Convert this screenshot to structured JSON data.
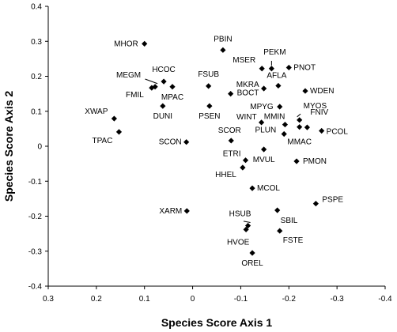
{
  "chart_data": {
    "type": "scatter",
    "title": "",
    "xlabel": "Species Score Axis 1",
    "ylabel": "Species Score Axis 2",
    "xlim": [
      0.3,
      -0.4
    ],
    "ylim": [
      -0.4,
      0.4
    ],
    "x_ticks": [
      "0.3",
      "0.2",
      "0.1",
      "0",
      "-0.1",
      "-0.2",
      "-0.3",
      "-0.4"
    ],
    "y_ticks": [
      "0.4",
      "0.3",
      "0.2",
      "0.1",
      "0",
      "-0.1",
      "-0.2",
      "-0.3",
      "-0.4"
    ],
    "grid": false,
    "marker": "diamond",
    "points": [
      {
        "label": "MHOR",
        "x": 0.1,
        "y": 0.293
      },
      {
        "label": "PBIN",
        "x": -0.063,
        "y": 0.275
      },
      {
        "label": "PEKM",
        "x": -0.164,
        "y": 0.222
      },
      {
        "label": "MSER",
        "x": -0.144,
        "y": 0.222
      },
      {
        "label": "PNOT",
        "x": -0.2,
        "y": 0.225
      },
      {
        "label": "MEGM",
        "x": 0.078,
        "y": 0.17
      },
      {
        "label": "HCOC",
        "x": 0.06,
        "y": 0.185
      },
      {
        "label": "FMIL",
        "x": 0.085,
        "y": 0.167
      },
      {
        "label": "MPAC",
        "x": 0.042,
        "y": 0.17
      },
      {
        "label": "FSUB",
        "x": -0.033,
        "y": 0.172
      },
      {
        "label": "MKRA",
        "x": -0.148,
        "y": 0.165
      },
      {
        "label": "AFLA",
        "x": -0.178,
        "y": 0.173
      },
      {
        "label": "BOCT",
        "x": -0.079,
        "y": 0.15
      },
      {
        "label": "WDEN",
        "x": -0.234,
        "y": 0.158
      },
      {
        "label": "DUNI",
        "x": 0.062,
        "y": 0.115
      },
      {
        "label": "PSEN",
        "x": -0.035,
        "y": 0.115
      },
      {
        "label": "MPYG",
        "x": -0.181,
        "y": 0.113
      },
      {
        "label": "XWAP",
        "x": 0.163,
        "y": 0.079
      },
      {
        "label": "WINT",
        "x": -0.143,
        "y": 0.068
      },
      {
        "label": "MMIN",
        "x": -0.192,
        "y": 0.062
      },
      {
        "label": "MYOS",
        "x": -0.222,
        "y": 0.075
      },
      {
        "label": "FNIV",
        "x": -0.238,
        "y": 0.054
      },
      {
        "label": "PCOL",
        "x": -0.268,
        "y": 0.044
      },
      {
        "label": "MMAC",
        "x": -0.222,
        "y": 0.055
      },
      {
        "label": "TPAC",
        "x": 0.153,
        "y": 0.041
      },
      {
        "label": "SCOR",
        "x": -0.08,
        "y": 0.016
      },
      {
        "label": "PLUN",
        "x": -0.19,
        "y": 0.035
      },
      {
        "label": "SCON",
        "x": 0.013,
        "y": 0.012
      },
      {
        "label": "MVUL",
        "x": -0.148,
        "y": -0.009
      },
      {
        "label": "ETRI",
        "x": -0.11,
        "y": -0.04
      },
      {
        "label": "PMON",
        "x": -0.216,
        "y": -0.043
      },
      {
        "label": "HHEL",
        "x": -0.104,
        "y": -0.061
      },
      {
        "label": "MCOL",
        "x": -0.124,
        "y": -0.12
      },
      {
        "label": "PSPE",
        "x": -0.256,
        "y": -0.164
      },
      {
        "label": "XARM",
        "x": 0.012,
        "y": -0.185
      },
      {
        "label": "HSUB",
        "x": -0.115,
        "y": -0.227
      },
      {
        "label": "SBIL",
        "x": -0.176,
        "y": -0.183
      },
      {
        "label": "HVOE",
        "x": -0.111,
        "y": -0.238
      },
      {
        "label": "FSTE",
        "x": -0.181,
        "y": -0.242
      },
      {
        "label": "OREL",
        "x": -0.124,
        "y": -0.305
      }
    ]
  }
}
